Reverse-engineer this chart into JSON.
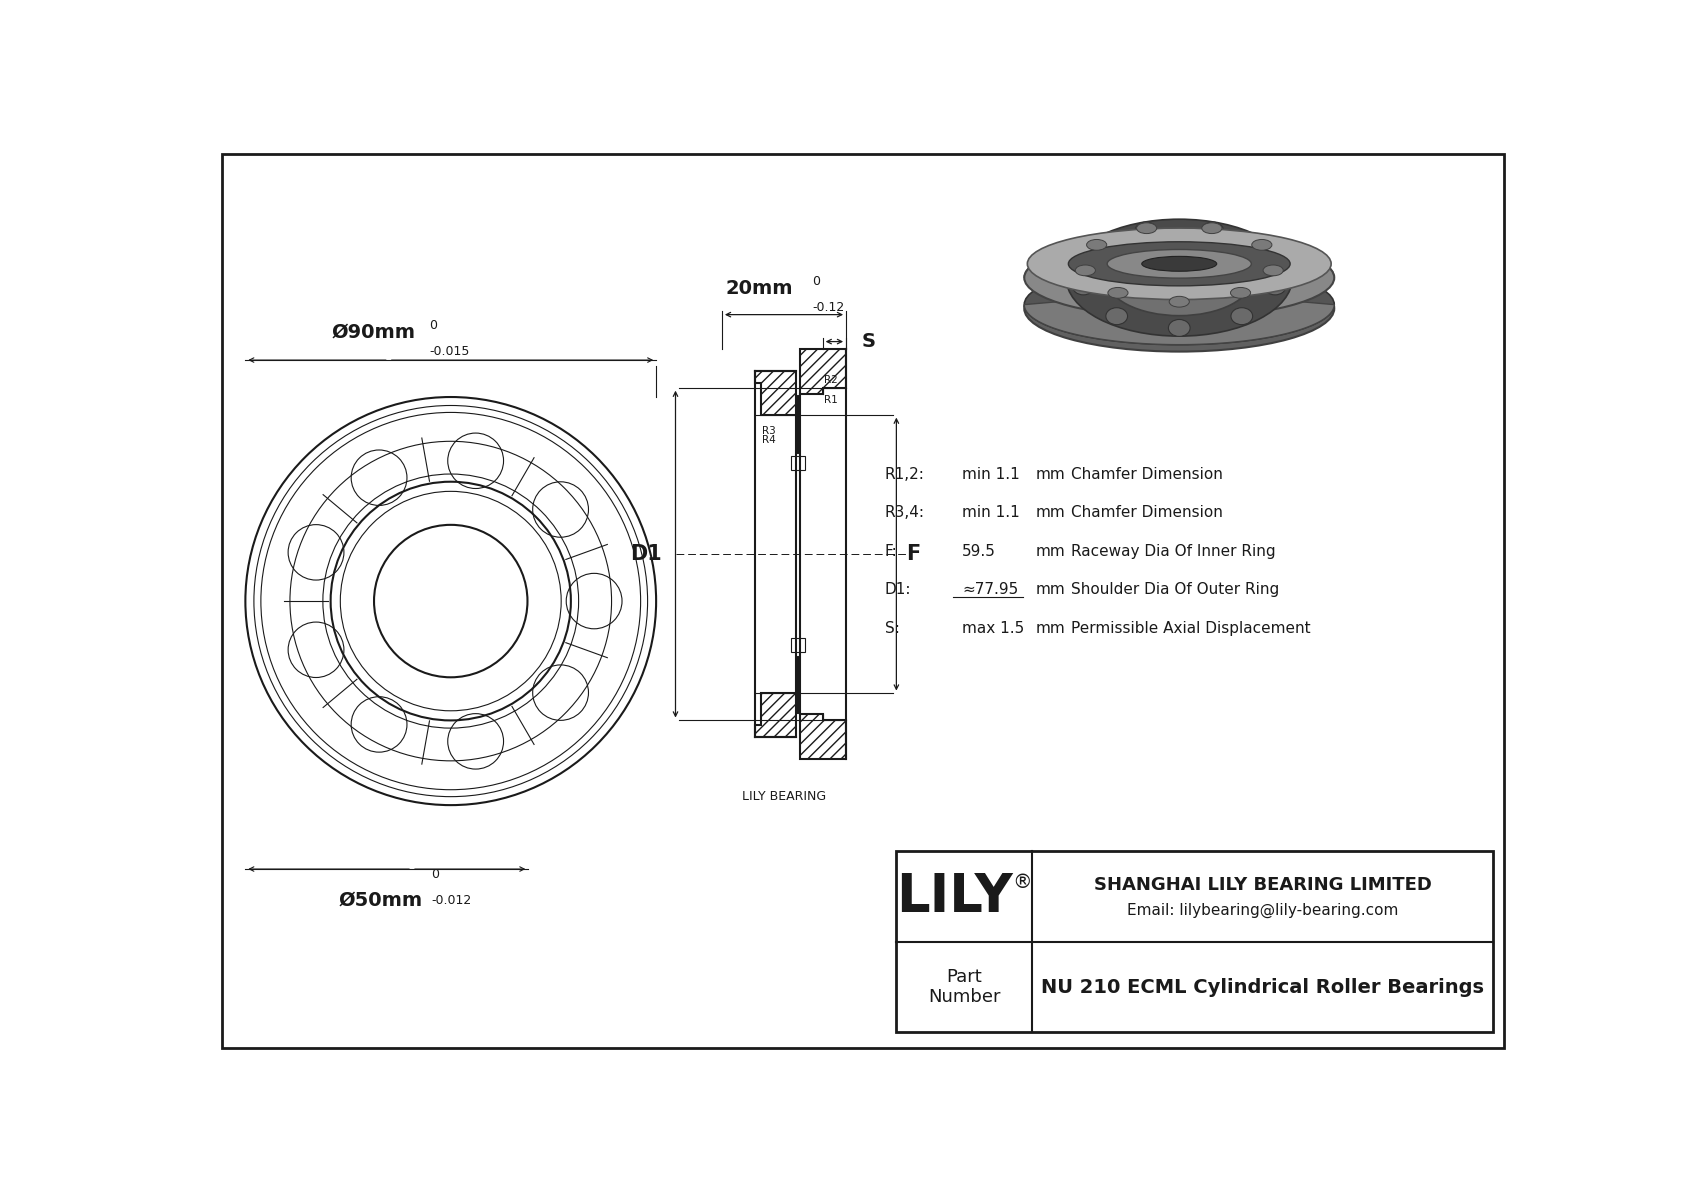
{
  "bg_color": "#ffffff",
  "line_color": "#1a1a1a",
  "title": "NU 210 ECML Cylindrical Roller Bearings",
  "company": "SHANGHAI LILY BEARING LIMITED",
  "email": "Email: lilybearing@lily-bearing.com",
  "part_label": "Part\nNumber",
  "lily_text": "LILY",
  "outer_dia_label": "Ø90mm",
  "outer_dia_tol_upper": "0",
  "outer_dia_tol_lower": "-0.015",
  "inner_dia_label": "Ø50mm",
  "inner_dia_tol_upper": "0",
  "inner_dia_tol_lower": "-0.012",
  "width_label": "20mm",
  "width_tol_upper": "0",
  "width_tol_lower": "-0.12",
  "D1_label": "D1",
  "F_label": "F",
  "S_label": "S",
  "R12_label": "R1,2:",
  "R34_label": "R3,4:",
  "F_param_label": "F:",
  "D1_param_label": "D1:",
  "S_param_label": "S:",
  "R12_val": "min 1.1",
  "R34_val": "min 1.1",
  "F_val": "59.5",
  "D1_val": "≈77.95",
  "S_val": "max 1.5",
  "mm_unit": "mm",
  "R12_desc": "Chamfer Dimension",
  "R34_desc": "Chamfer Dimension",
  "F_desc": "Raceway Dia Of Inner Ring",
  "D1_desc": "Shoulder Dia Of Outer Ring",
  "S_desc": "Permissible Axial Displacement",
  "lily_bearing_label": "LILY BEARING",
  "R1_label": "R1",
  "R2_label": "R2",
  "R3_label": "R3",
  "R4_label": "R4"
}
